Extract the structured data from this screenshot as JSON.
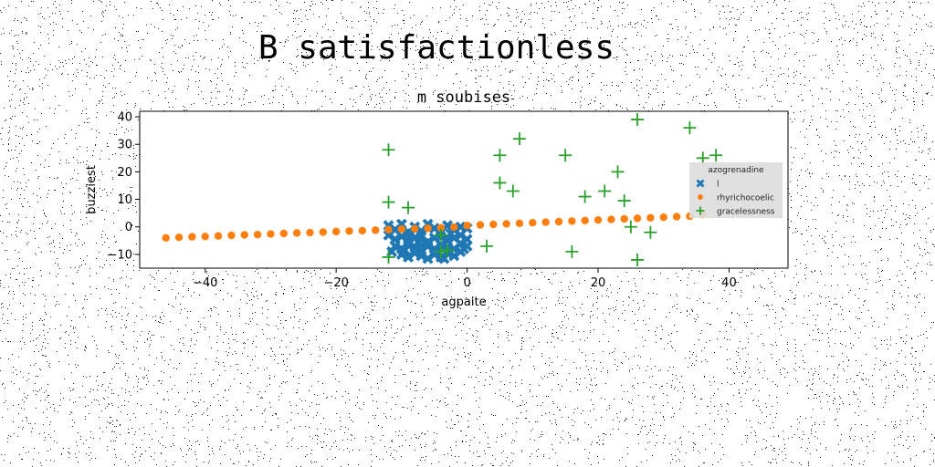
{
  "page": {
    "title": "B satisfactionless"
  },
  "chart_data": {
    "type": "scatter",
    "title": "m soubises",
    "xlabel": "agpaite",
    "ylabel": "buzziest",
    "xlim": [
      -50,
      49
    ],
    "ylim": [
      -15,
      42
    ],
    "xticks": [
      -40,
      -20,
      0,
      20,
      40
    ],
    "yticks": [
      -10,
      0,
      10,
      20,
      30,
      40
    ],
    "xtick_labels": [
      "−40",
      "−20",
      "0",
      "20",
      "40"
    ],
    "ytick_labels": [
      "−10",
      "0",
      "10",
      "20",
      "30",
      "40"
    ],
    "grid": false,
    "legend": {
      "title": "azogrenadine",
      "position": "right"
    },
    "series": [
      {
        "name": "l",
        "marker": "x-filled",
        "color": "#1f77b4",
        "points": [
          [
            -12,
            0.5
          ],
          [
            -11,
            -1
          ],
          [
            -10,
            1
          ],
          [
            -9,
            -2
          ],
          [
            -8,
            0
          ],
          [
            -7,
            -1.5
          ],
          [
            -6,
            1
          ],
          [
            -5,
            -0.5
          ],
          [
            -4,
            -2
          ],
          [
            -3,
            0.5
          ],
          [
            -2,
            -1
          ],
          [
            -1,
            0
          ],
          [
            0,
            -0.5
          ],
          [
            -12,
            -3
          ],
          [
            -11,
            -4.5
          ],
          [
            -10,
            -3.5
          ],
          [
            -9,
            -5
          ],
          [
            -8,
            -4
          ],
          [
            -7,
            -3
          ],
          [
            -6,
            -5.5
          ],
          [
            -5,
            -4
          ],
          [
            -4,
            -3.5
          ],
          [
            -3,
            -5
          ],
          [
            -2,
            -4
          ],
          [
            -1,
            -3
          ],
          [
            0,
            -4.5
          ],
          [
            -11,
            -7
          ],
          [
            -10,
            -8
          ],
          [
            -9,
            -6.5
          ],
          [
            -8,
            -7.5
          ],
          [
            -7,
            -8.5
          ],
          [
            -6,
            -7
          ],
          [
            -5,
            -8
          ],
          [
            -4,
            -6.5
          ],
          [
            -3,
            -7.5
          ],
          [
            -2,
            -8
          ],
          [
            -1,
            -6
          ],
          [
            0,
            -7
          ],
          [
            -10,
            -10
          ],
          [
            -9,
            -11
          ],
          [
            -8,
            -9.5
          ],
          [
            -7,
            -10.5
          ],
          [
            -6,
            -11.5
          ],
          [
            -5,
            -10
          ],
          [
            -4,
            -11
          ],
          [
            -3,
            -9.5
          ],
          [
            -2,
            -10.5
          ],
          [
            -1,
            -9
          ],
          [
            -11.5,
            -9
          ],
          [
            -8.5,
            -2.5
          ],
          [
            -6.5,
            -6
          ],
          [
            -4.5,
            -9
          ],
          [
            -2.5,
            -2.5
          ],
          [
            -0.5,
            -8
          ],
          [
            -9.5,
            -8.5
          ],
          [
            -3.5,
            -11.5
          ],
          [
            -7.5,
            -5.5
          ]
        ]
      },
      {
        "name": "rhyrichocoelic",
        "marker": "circle",
        "color": "#ff7f0e",
        "points": [
          [
            -46,
            -4
          ],
          [
            -44,
            -3.8
          ],
          [
            -42,
            -3.6
          ],
          [
            -40,
            -3.5
          ],
          [
            -38,
            -3.3
          ],
          [
            -36,
            -3.1
          ],
          [
            -34,
            -2.9
          ],
          [
            -32,
            -2.8
          ],
          [
            -30,
            -2.6
          ],
          [
            -28,
            -2.4
          ],
          [
            -26,
            -2.2
          ],
          [
            -24,
            -2.1
          ],
          [
            -22,
            -1.9
          ],
          [
            -20,
            -1.7
          ],
          [
            -18,
            -1.5
          ],
          [
            -16,
            -1.4
          ],
          [
            -14,
            -1.2
          ],
          [
            -12,
            -1
          ],
          [
            -10,
            -0.8
          ],
          [
            -8,
            -0.7
          ],
          [
            -6,
            -0.5
          ],
          [
            -4,
            -0.3
          ],
          [
            -2,
            -0.1
          ],
          [
            0,
            0.5
          ],
          [
            2,
            0.7
          ],
          [
            4,
            0.9
          ],
          [
            6,
            1.1
          ],
          [
            8,
            1.3
          ],
          [
            10,
            1.5
          ],
          [
            12,
            1.7
          ],
          [
            14,
            1.9
          ],
          [
            16,
            2.1
          ],
          [
            18,
            2.3
          ],
          [
            20,
            2.5
          ],
          [
            22,
            2.7
          ],
          [
            24,
            2.9
          ],
          [
            26,
            3.1
          ],
          [
            28,
            3.3
          ],
          [
            30,
            3.5
          ],
          [
            32,
            3.7
          ],
          [
            34,
            3.9
          ],
          [
            36,
            4.5
          ]
        ]
      },
      {
        "name": "gracelessness",
        "marker": "plus",
        "color": "#2ca02c",
        "points": [
          [
            -12,
            28
          ],
          [
            -12,
            9
          ],
          [
            -12,
            -11
          ],
          [
            -9,
            7
          ],
          [
            -4,
            -3
          ],
          [
            -4,
            -9
          ],
          [
            -3,
            -8.5
          ],
          [
            3,
            -7
          ],
          [
            5,
            26
          ],
          [
            5,
            16
          ],
          [
            7,
            13
          ],
          [
            8,
            32
          ],
          [
            15,
            26
          ],
          [
            16,
            -9
          ],
          [
            18,
            11
          ],
          [
            21,
            13
          ],
          [
            23,
            20
          ],
          [
            24,
            9.5
          ],
          [
            25,
            0
          ],
          [
            26,
            39
          ],
          [
            26,
            -12
          ],
          [
            28,
            -2
          ],
          [
            34,
            36
          ],
          [
            36,
            25
          ],
          [
            38,
            26
          ]
        ]
      }
    ]
  }
}
